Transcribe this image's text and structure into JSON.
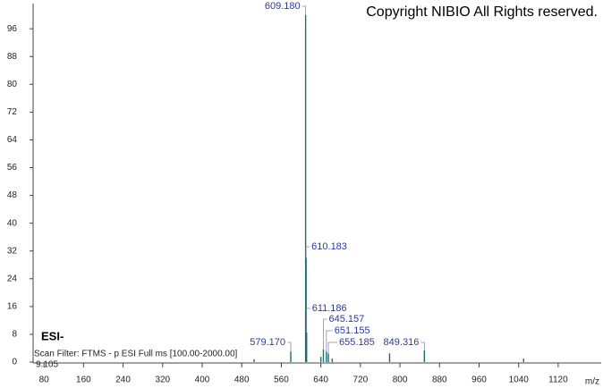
{
  "chart_data": {
    "type": "spectrum",
    "copyright": "Copyright NIBIO All Rights reserved.",
    "ionization": "ESI-",
    "scan_filter": "Scan Filter: FTMS - p ESI Full ms [100.00-2000.00]",
    "retention_time": "9.105",
    "x_label": "m/z",
    "x": [
      579.17,
      609.18,
      610.183,
      611.186,
      645.157,
      651.155,
      655.185,
      849.316,
      640,
      663,
      779,
      1050,
      505
    ],
    "values": [
      3,
      100,
      30,
      8.5,
      3.6,
      3,
      2.5,
      3.4,
      1.5,
      1,
      2.5,
      1,
      0.8
    ],
    "peak_labels": [
      "579.170",
      "609.180",
      "610.183",
      "611.186",
      "645.157",
      "651.155",
      "655.185",
      "849.316",
      null,
      null,
      null,
      null,
      null
    ],
    "color": "#137070",
    "label_color": "#2a3a9a",
    "xlim": [
      58,
      1207
    ],
    "ylim": [
      0,
      103
    ],
    "xticks": [
      80,
      160,
      240,
      320,
      400,
      480,
      560,
      640,
      720,
      800,
      880,
      960,
      1040,
      1120
    ],
    "yticks": [
      0,
      8,
      16,
      24,
      32,
      40,
      48,
      56,
      64,
      72,
      80,
      88,
      96
    ]
  }
}
